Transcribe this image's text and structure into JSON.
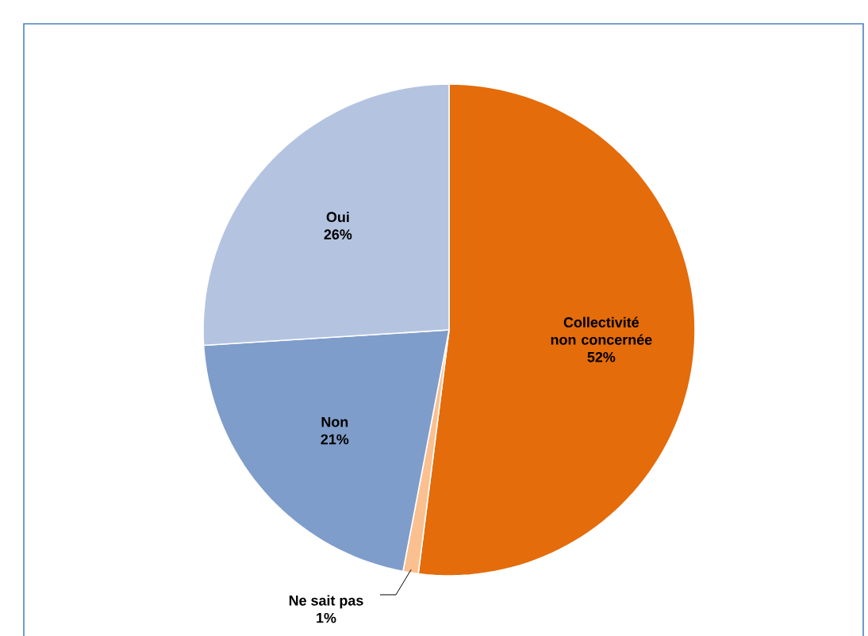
{
  "chart_data": {
    "type": "pie",
    "categories": [
      "Collectivité non concernée",
      "Ne sait pas",
      "Non",
      "Oui"
    ],
    "values": [
      52,
      1,
      21,
      26
    ],
    "value_labels": [
      "52%",
      "1%",
      "21%",
      "26%"
    ],
    "colors": [
      "#e46c0a",
      "#fac090",
      "#7f9dca",
      "#b4c4e0"
    ]
  }
}
